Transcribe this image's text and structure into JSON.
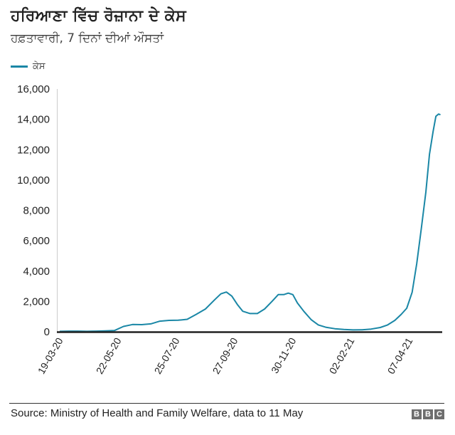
{
  "header": {
    "title": "ਹਰਿਆਣਾ ਵਿੱਚ ਰੋਜ਼ਾਨਾ ਦੇ ਕੇਸ",
    "subtitle": "ਹਫ਼ਤਾਵਾਰੀ, 7 ਦਿਨਾਂ ਦੀਆਂ ਔਸਤਾਂ"
  },
  "legend": {
    "label": "ਕੇਸ",
    "color": "#1a87a6"
  },
  "footer": {
    "source": "Source: Ministry of Health and Family Welfare, data to 11 May",
    "logo": [
      "B",
      "B",
      "C"
    ]
  },
  "chart_data": {
    "type": "line",
    "title": "ਹਰਿਆਣਾ ਵਿੱਚ ਰੋਜ਼ਾਨਾ ਦੇ ਕੇਸ",
    "subtitle": "ਹਫ਼ਤਾਵਾਰੀ, 7 ਦਿਨਾਂ ਦੀਆਂ ਔਸਤਾਂ",
    "xlabel": "",
    "ylabel": "",
    "ylim": [
      0,
      16000
    ],
    "yticks": [
      0,
      2000,
      4000,
      6000,
      8000,
      10000,
      12000,
      14000,
      16000
    ],
    "ytick_labels": [
      "0",
      "2,000",
      "4,000",
      "6,000",
      "8,000",
      "10,000",
      "12,000",
      "14,000",
      "16,000"
    ],
    "xtick_labels": [
      "19-03-20",
      "22-05-20",
      "25-07-20",
      "27-09-20",
      "30-11-20",
      "02-02-21",
      "07-04-21"
    ],
    "grid": false,
    "legend_position": "top-left",
    "series": [
      {
        "name": "ਕੇਸ",
        "color": "#1a87a6",
        "x": [
          "19-03-20",
          "29-03-20",
          "08-04-20",
          "18-04-20",
          "28-04-20",
          "08-05-20",
          "18-05-20",
          "28-05-20",
          "07-06-20",
          "17-06-20",
          "27-06-20",
          "07-07-20",
          "17-07-20",
          "27-07-20",
          "06-08-20",
          "16-08-20",
          "26-08-20",
          "05-09-20",
          "12-09-20",
          "18-09-20",
          "24-09-20",
          "30-09-20",
          "06-10-20",
          "14-10-20",
          "22-10-20",
          "30-10-20",
          "07-11-20",
          "14-11-20",
          "20-11-20",
          "25-11-20",
          "30-11-20",
          "05-12-20",
          "12-12-20",
          "20-12-20",
          "28-12-20",
          "05-01-21",
          "15-01-21",
          "25-01-21",
          "04-02-21",
          "14-02-21",
          "24-02-21",
          "06-03-21",
          "14-03-21",
          "22-03-21",
          "29-03-21",
          "04-04-21",
          "10-04-21",
          "15-04-21",
          "20-04-21",
          "25-04-21",
          "29-04-21",
          "03-05-21",
          "06-05-21",
          "09-05-21",
          "11-05-21"
        ],
        "values": [
          30,
          40,
          40,
          30,
          40,
          60,
          80,
          350,
          480,
          470,
          520,
          700,
          750,
          760,
          820,
          1150,
          1500,
          2100,
          2500,
          2620,
          2350,
          1800,
          1350,
          1200,
          1200,
          1500,
          2000,
          2450,
          2450,
          2550,
          2450,
          1900,
          1350,
          800,
          450,
          300,
          200,
          150,
          120,
          130,
          180,
          280,
          450,
          750,
          1150,
          1550,
          2600,
          4500,
          6800,
          9200,
          11700,
          13200,
          14200,
          14350,
          14300
        ]
      }
    ]
  }
}
